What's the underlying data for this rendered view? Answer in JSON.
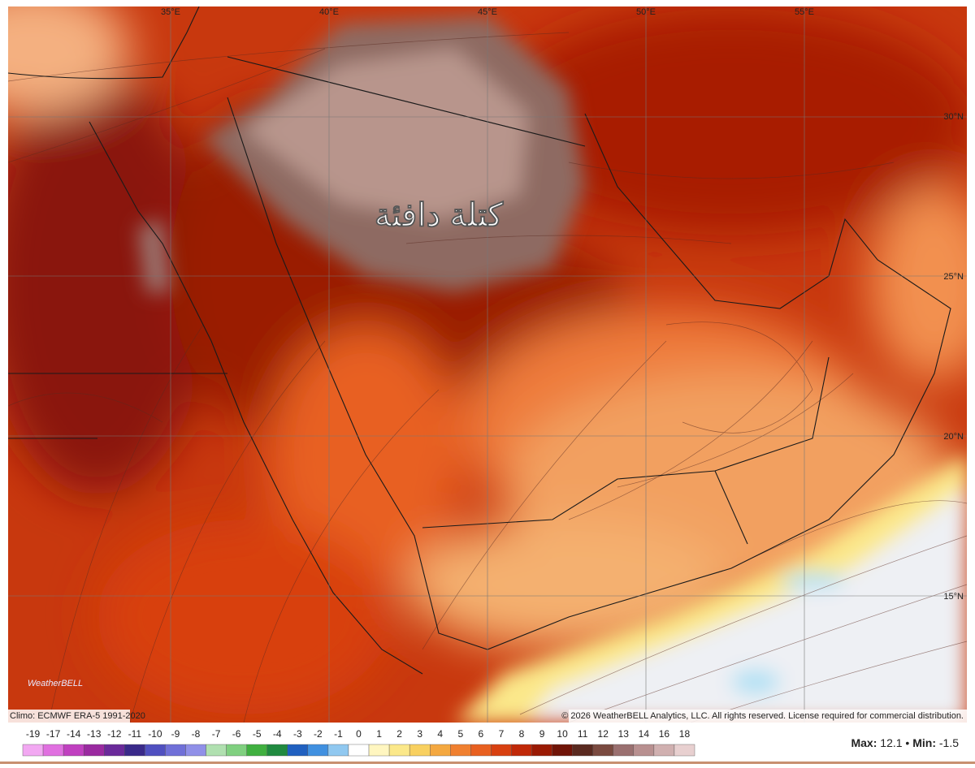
{
  "map": {
    "lon_labels": [
      "35°E",
      "40°E",
      "45°E",
      "50°E",
      "55°E"
    ],
    "lat_labels": [
      "30°N",
      "25°N",
      "20°N",
      "15°N"
    ],
    "annotation": "كتلة دافئة",
    "climo": "Climo: ECMWF ERA-5 1991-2020",
    "copyright": "© 2026 WeatherBELL Analytics, LLC. All rights reserved. License required for commercial distribution.",
    "logo": "WeatherBELL"
  },
  "colorbar": {
    "labels": [
      -19,
      -17,
      -14,
      -13,
      -12,
      -11,
      -10,
      -9,
      -8,
      -7,
      -6,
      -5,
      -4,
      -3,
      -2,
      -1,
      0,
      1,
      2,
      3,
      4,
      5,
      6,
      7,
      8,
      9,
      10,
      11,
      12,
      13,
      14,
      16,
      18
    ],
    "colors": [
      "#f2a8f2",
      "#e070e0",
      "#c040c0",
      "#9a2aa0",
      "#6a2a9a",
      "#3a2a8a",
      "#5050c0",
      "#7070d8",
      "#9090e8",
      "#b0e0b0",
      "#80d080",
      "#40b040",
      "#208a40",
      "#2060c0",
      "#4090e0",
      "#90c8f0",
      "#ffffff",
      "#fff6c0",
      "#fbe88a",
      "#f8d060",
      "#f4a840",
      "#f08030",
      "#e86020",
      "#d84010",
      "#c02808",
      "#9a1a04",
      "#701408",
      "#5a2a20",
      "#7a4a40",
      "#9a7070",
      "#b89090",
      "#d0b0b0",
      "#e8d0d0"
    ]
  },
  "stats": {
    "max_label": "Max:",
    "max": 12.1,
    "separator": "•",
    "min_label": "Min:",
    "min": -1.5
  }
}
